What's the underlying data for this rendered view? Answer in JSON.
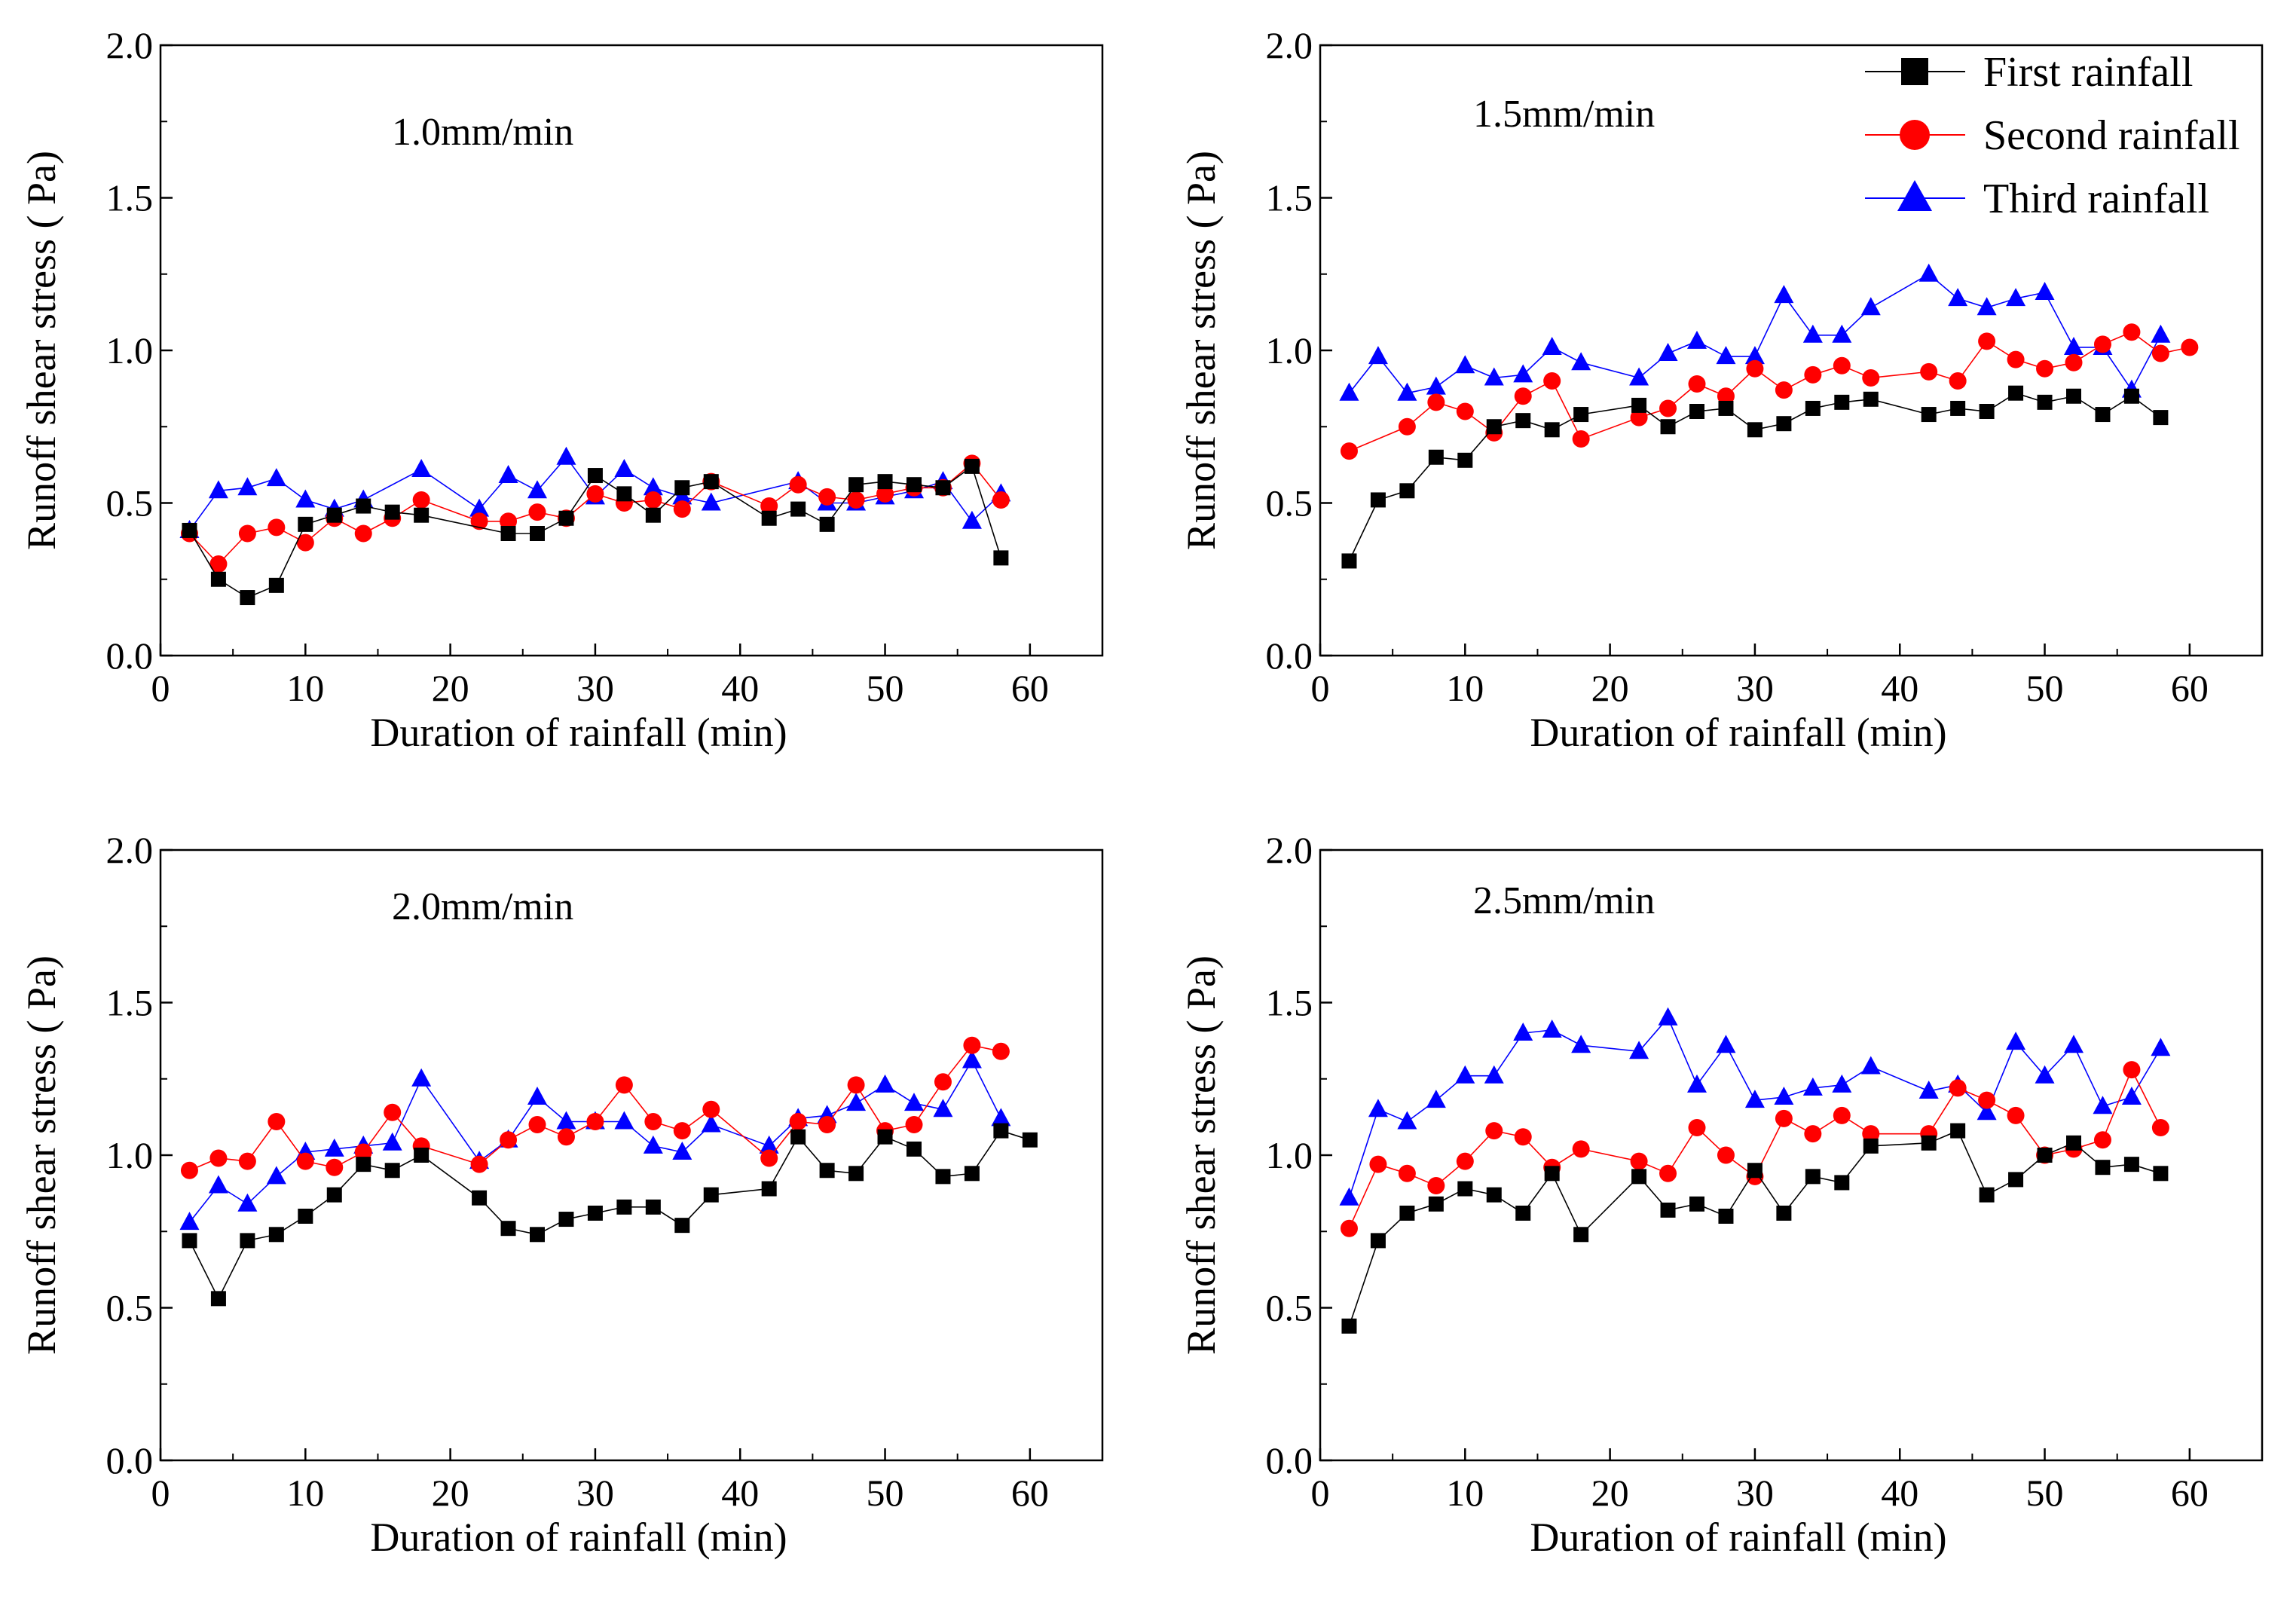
{
  "legend": {
    "items": [
      {
        "label": "First rainfall",
        "color": "#000000",
        "marker": "square"
      },
      {
        "label": "Second rainfall",
        "color": "#ff0000",
        "marker": "circle"
      },
      {
        "label": "Third rainfall",
        "color": "#0000ff",
        "marker": "triangle"
      }
    ]
  },
  "chart_data": [
    {
      "type": "line",
      "title": "1.0mm/min",
      "xlabel": "Duration of rainfall  (min)",
      "ylabel": "Runoff shear stress  ( Pa)",
      "xlim": [
        0,
        65
      ],
      "ylim": [
        0,
        2.0
      ],
      "xticks": [
        "0",
        "10",
        "20",
        "30",
        "40",
        "50",
        "60"
      ],
      "yticks": [
        "0.0",
        "0.5",
        "1.0",
        "1.5",
        "2.0"
      ],
      "series": [
        {
          "name": "First rainfall",
          "x": [
            2,
            4,
            6,
            8,
            10,
            12,
            14,
            16,
            18,
            24,
            26,
            28,
            30,
            32,
            34,
            36,
            38,
            42,
            44,
            46,
            48,
            50,
            52,
            54,
            56,
            58
          ],
          "y": [
            0.41,
            0.25,
            0.19,
            0.23,
            0.43,
            0.46,
            0.49,
            0.47,
            0.46,
            0.4,
            0.4,
            0.45,
            0.59,
            0.53,
            0.46,
            0.55,
            0.57,
            0.45,
            0.48,
            0.43,
            0.56,
            0.57,
            0.56,
            0.55,
            0.62,
            0.32
          ]
        },
        {
          "name": "Second rainfall",
          "x": [
            2,
            4,
            6,
            8,
            10,
            12,
            14,
            16,
            18,
            22,
            24,
            26,
            28,
            30,
            32,
            34,
            36,
            38,
            42,
            44,
            46,
            48,
            50,
            52,
            54,
            56,
            58
          ],
          "y": [
            0.4,
            0.3,
            0.4,
            0.42,
            0.37,
            0.45,
            0.4,
            0.45,
            0.51,
            0.44,
            0.44,
            0.47,
            0.45,
            0.53,
            0.5,
            0.51,
            0.48,
            0.57,
            0.49,
            0.56,
            0.52,
            0.51,
            0.53,
            0.55,
            0.55,
            0.63,
            0.51
          ]
        },
        {
          "name": "Third rainfall",
          "x": [
            2,
            4,
            6,
            8,
            10,
            12,
            14,
            18,
            22,
            24,
            26,
            28,
            30,
            32,
            34,
            36,
            38,
            44,
            46,
            48,
            50,
            52,
            54,
            56,
            58
          ],
          "y": [
            0.41,
            0.54,
            0.55,
            0.58,
            0.51,
            0.48,
            0.51,
            0.61,
            0.48,
            0.59,
            0.54,
            0.65,
            0.52,
            0.61,
            0.55,
            0.52,
            0.5,
            0.57,
            0.5,
            0.5,
            0.52,
            0.54,
            0.57,
            0.44,
            0.53
          ]
        }
      ]
    },
    {
      "type": "line",
      "title": "1.5mm/min",
      "xlabel": "Duration of rainfall  (min)",
      "ylabel": "Runoff shear stress  ( Pa)",
      "xlim": [
        0,
        65
      ],
      "ylim": [
        0,
        2.0
      ],
      "xticks": [
        "0",
        "10",
        "20",
        "30",
        "40",
        "50",
        "60"
      ],
      "yticks": [
        "0.0",
        "0.5",
        "1.0",
        "1.5",
        "2.0"
      ],
      "series": [
        {
          "name": "First rainfall",
          "x": [
            2,
            4,
            6,
            8,
            10,
            12,
            14,
            16,
            18,
            22,
            24,
            26,
            28,
            30,
            32,
            34,
            36,
            38,
            42,
            44,
            46,
            48,
            50,
            52,
            54,
            56,
            58
          ],
          "y": [
            0.31,
            0.51,
            0.54,
            0.65,
            0.64,
            0.75,
            0.77,
            0.74,
            0.79,
            0.82,
            0.75,
            0.8,
            0.81,
            0.74,
            0.76,
            0.81,
            0.83,
            0.84,
            0.79,
            0.81,
            0.8,
            0.86,
            0.83,
            0.85,
            0.79,
            0.85,
            0.78
          ]
        },
        {
          "name": "Second rainfall",
          "x": [
            2,
            6,
            8,
            10,
            12,
            14,
            16,
            18,
            22,
            24,
            26,
            28,
            30,
            32,
            34,
            36,
            38,
            42,
            44,
            46,
            48,
            50,
            52,
            54,
            56,
            58,
            60
          ],
          "y": [
            0.67,
            0.75,
            0.83,
            0.8,
            0.73,
            0.85,
            0.9,
            0.71,
            0.78,
            0.81,
            0.89,
            0.85,
            0.94,
            0.87,
            0.92,
            0.95,
            0.91,
            0.93,
            0.9,
            1.03,
            0.97,
            0.94,
            0.96,
            1.02,
            1.06,
            0.99,
            1.01
          ]
        },
        {
          "name": "Third rainfall",
          "x": [
            2,
            4,
            6,
            8,
            10,
            12,
            14,
            16,
            18,
            22,
            24,
            26,
            28,
            30,
            32,
            34,
            36,
            38,
            42,
            44,
            46,
            48,
            50,
            52,
            54,
            56,
            58
          ],
          "y": [
            0.86,
            0.98,
            0.86,
            0.88,
            0.95,
            0.91,
            0.92,
            1.01,
            0.96,
            0.91,
            0.99,
            1.03,
            0.98,
            0.98,
            1.18,
            1.05,
            1.05,
            1.14,
            1.25,
            1.17,
            1.14,
            1.17,
            1.19,
            1.01,
            1.01,
            0.87,
            1.05
          ]
        }
      ]
    },
    {
      "type": "line",
      "title": "2.0mm/min",
      "xlabel": "Duration of rainfall  (min)",
      "ylabel": "Runoff shear stress  ( Pa)",
      "xlim": [
        0,
        65
      ],
      "ylim": [
        0,
        2.0
      ],
      "xticks": [
        "0",
        "10",
        "20",
        "30",
        "40",
        "50",
        "60"
      ],
      "yticks": [
        "0.0",
        "0.5",
        "1.0",
        "1.5",
        "2.0"
      ],
      "series": [
        {
          "name": "First rainfall",
          "x": [
            2,
            4,
            6,
            8,
            10,
            12,
            14,
            16,
            18,
            22,
            24,
            26,
            28,
            30,
            32,
            34,
            36,
            38,
            42,
            44,
            46,
            48,
            50,
            52,
            54,
            56,
            58,
            60
          ],
          "y": [
            0.72,
            0.53,
            0.72,
            0.74,
            0.8,
            0.87,
            0.97,
            0.95,
            1.0,
            0.86,
            0.76,
            0.74,
            0.79,
            0.81,
            0.83,
            0.83,
            0.77,
            0.87,
            0.89,
            1.06,
            0.95,
            0.94,
            1.06,
            1.02,
            0.93,
            0.94,
            1.08,
            1.05
          ]
        },
        {
          "name": "Second rainfall",
          "x": [
            2,
            4,
            6,
            8,
            10,
            12,
            14,
            16,
            18,
            22,
            24,
            26,
            28,
            30,
            32,
            34,
            36,
            38,
            42,
            44,
            46,
            48,
            50,
            52,
            54,
            56,
            58
          ],
          "y": [
            0.95,
            0.99,
            0.98,
            1.11,
            0.98,
            0.96,
            1.01,
            1.14,
            1.03,
            0.97,
            1.05,
            1.1,
            1.06,
            1.11,
            1.23,
            1.11,
            1.08,
            1.15,
            0.99,
            1.11,
            1.1,
            1.23,
            1.08,
            1.1,
            1.24,
            1.36,
            1.34
          ]
        },
        {
          "name": "Third rainfall",
          "x": [
            2,
            4,
            6,
            8,
            10,
            12,
            14,
            16,
            18,
            22,
            24,
            26,
            28,
            30,
            32,
            34,
            36,
            38,
            42,
            44,
            46,
            48,
            50,
            52,
            54,
            56,
            58
          ],
          "y": [
            0.78,
            0.9,
            0.84,
            0.93,
            1.01,
            1.02,
            1.03,
            1.04,
            1.25,
            0.98,
            1.05,
            1.19,
            1.11,
            1.11,
            1.11,
            1.03,
            1.01,
            1.1,
            1.03,
            1.12,
            1.13,
            1.17,
            1.23,
            1.17,
            1.15,
            1.31,
            1.12
          ]
        }
      ]
    },
    {
      "type": "line",
      "title": "2.5mm/min",
      "xlabel": "Duration of rainfall  (min)",
      "ylabel": "Runoff shear stress  ( Pa)",
      "xlim": [
        0,
        65
      ],
      "ylim": [
        0,
        2.0
      ],
      "xticks": [
        "0",
        "10",
        "20",
        "30",
        "40",
        "50",
        "60"
      ],
      "yticks": [
        "0.0",
        "0.5",
        "1.0",
        "1.5",
        "2.0"
      ],
      "series": [
        {
          "name": "First rainfall",
          "x": [
            2,
            4,
            6,
            8,
            10,
            12,
            14,
            16,
            18,
            22,
            24,
            26,
            28,
            30,
            32,
            34,
            36,
            38,
            42,
            44,
            46,
            48,
            50,
            52,
            54,
            56,
            58
          ],
          "y": [
            0.44,
            0.72,
            0.81,
            0.84,
            0.89,
            0.87,
            0.81,
            0.94,
            0.74,
            0.93,
            0.82,
            0.84,
            0.8,
            0.95,
            0.81,
            0.93,
            0.91,
            1.03,
            1.04,
            1.08,
            0.87,
            0.92,
            1.0,
            1.04,
            0.96,
            0.97,
            0.94
          ]
        },
        {
          "name": "Second rainfall",
          "x": [
            2,
            4,
            6,
            8,
            10,
            12,
            14,
            16,
            18,
            22,
            24,
            26,
            28,
            30,
            32,
            34,
            36,
            38,
            42,
            44,
            46,
            48,
            50,
            52,
            54,
            56,
            58
          ],
          "y": [
            0.76,
            0.97,
            0.94,
            0.9,
            0.98,
            1.08,
            1.06,
            0.96,
            1.02,
            0.98,
            0.94,
            1.09,
            1.0,
            0.93,
            1.12,
            1.07,
            1.13,
            1.07,
            1.07,
            1.22,
            1.18,
            1.13,
            1.0,
            1.02,
            1.05,
            1.28,
            1.09
          ]
        },
        {
          "name": "Third rainfall",
          "x": [
            2,
            4,
            6,
            8,
            10,
            12,
            14,
            16,
            18,
            22,
            24,
            26,
            28,
            30,
            32,
            34,
            36,
            38,
            42,
            44,
            46,
            48,
            50,
            52,
            54,
            56,
            58
          ],
          "y": [
            0.86,
            1.15,
            1.11,
            1.18,
            1.26,
            1.26,
            1.4,
            1.41,
            1.36,
            1.34,
            1.45,
            1.23,
            1.36,
            1.18,
            1.19,
            1.22,
            1.23,
            1.29,
            1.21,
            1.23,
            1.14,
            1.37,
            1.26,
            1.36,
            1.16,
            1.19,
            1.35
          ]
        }
      ]
    }
  ]
}
